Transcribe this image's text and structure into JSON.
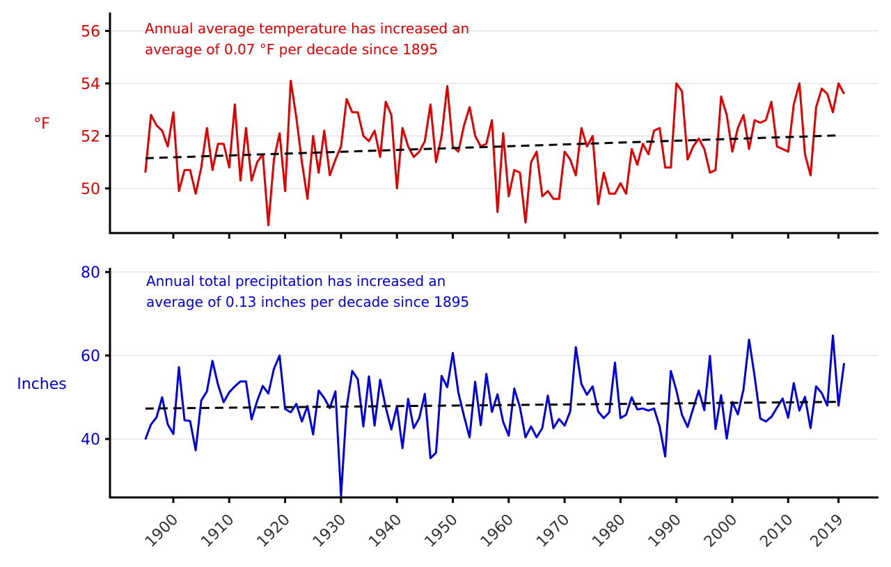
{
  "chart_data": [
    {
      "type": "line",
      "name": "temperature",
      "color": "#e00000",
      "ylabel": "°F",
      "annotation": [
        "Annual average temperature has increased an",
        "average of 0.07 °F per decade since 1895"
      ],
      "ylim": [
        48.3,
        56.7
      ],
      "yticks": [
        50,
        52,
        54,
        56
      ],
      "trend": {
        "start_year": 1895,
        "start_value": 51.15,
        "end_year": 2019,
        "end_value": 52.02
      },
      "series": [
        {
          "name": "Annual average temperature",
          "start_year": 1895,
          "values": [
            50.6,
            52.8,
            52.4,
            52.2,
            51.6,
            52.9,
            49.9,
            50.7,
            50.7,
            49.8,
            50.8,
            52.3,
            50.7,
            51.7,
            51.7,
            50.8,
            53.2,
            50.3,
            52.3,
            50.3,
            51.0,
            51.3,
            48.6,
            51.1,
            52.1,
            49.9,
            54.1,
            52.7,
            51.0,
            49.6,
            52.0,
            50.6,
            52.2,
            50.5,
            51.1,
            51.6,
            53.4,
            52.9,
            52.9,
            52.0,
            51.8,
            52.2,
            51.2,
            53.3,
            52.8,
            50.0,
            52.3,
            51.6,
            51.2,
            51.4,
            51.8,
            53.2,
            51.0,
            52.0,
            53.9,
            51.6,
            51.4,
            52.4,
            53.1,
            52.0,
            51.6,
            51.7,
            52.6,
            49.1,
            52.1,
            49.7,
            50.7,
            50.6,
            48.7,
            51.0,
            51.4,
            49.7,
            49.9,
            49.6,
            49.6,
            51.4,
            51.1,
            50.5,
            52.3,
            51.6,
            52.0,
            49.4,
            50.6,
            49.8,
            49.8,
            50.2,
            49.8,
            51.5,
            50.9,
            51.7,
            51.3,
            52.2,
            52.3,
            50.8,
            50.8,
            54.0,
            53.7,
            51.1,
            51.6,
            51.9,
            51.5,
            50.6,
            50.7,
            53.5,
            52.8,
            51.4,
            52.3,
            52.8,
            51.5,
            52.6,
            52.5,
            52.6,
            53.3,
            51.6,
            51.5,
            51.4,
            53.2,
            54.0,
            51.3,
            50.5,
            53.1,
            53.8,
            53.6,
            52.9,
            54.0,
            53.6
          ]
        }
      ]
    },
    {
      "type": "line",
      "name": "precipitation",
      "color": "#0000dd",
      "ylabel": "Inches",
      "annotation": [
        "Annual total precipitation has increased an",
        "average of 0.13 inches per decade since 1895"
      ],
      "ylim": [
        26,
        81
      ],
      "yticks": [
        40,
        60,
        80
      ],
      "trend": {
        "start_year": 1895,
        "start_value": 47.3,
        "end_year": 2019,
        "end_value": 48.9
      },
      "series": [
        {
          "name": "Annual total precipitation",
          "start_year": 1895,
          "values": [
            39.9,
            43.5,
            45.2,
            50.0,
            43.5,
            41.2,
            57.2,
            44.5,
            44.3,
            37.3,
            49.2,
            51.4,
            58.7,
            53.0,
            48.8,
            51.2,
            52.6,
            53.8,
            53.8,
            44.7,
            49.1,
            52.7,
            50.9,
            56.8,
            60.0,
            47.2,
            46.4,
            48.4,
            44.2,
            47.9,
            41.1,
            51.6,
            49.8,
            47.4,
            51.4,
            26.3,
            47.5,
            56.3,
            54.3,
            43.0,
            55.0,
            43.2,
            54.2,
            47.6,
            42.3,
            47.8,
            37.8,
            49.6,
            42.6,
            45.0,
            50.8,
            35.4,
            36.7,
            55.1,
            52.4,
            60.6,
            51.1,
            45.5,
            40.4,
            53.7,
            43.3,
            55.6,
            46.5,
            50.7,
            44.1,
            40.8,
            52.1,
            47.6,
            40.4,
            43.0,
            40.4,
            42.6,
            50.4,
            42.6,
            44.8,
            43.2,
            46.6,
            62.0,
            53.2,
            50.6,
            52.6,
            46.6,
            45.0,
            46.4,
            58.3,
            45.0,
            45.8,
            50.0,
            47.1,
            47.3,
            46.8,
            47.3,
            43.0,
            35.8,
            56.3,
            51.6,
            45.8,
            42.9,
            47.3,
            51.6,
            46.9,
            59.9,
            42.4,
            50.5,
            40.1,
            48.9,
            45.9,
            51.9,
            63.8,
            55.0,
            44.9,
            44.2,
            45.3,
            47.5,
            49.7,
            45.1,
            53.4,
            46.8,
            50.1,
            42.6,
            52.6,
            51.0,
            48.0,
            64.8,
            48.0,
            58.2
          ]
        }
      ]
    }
  ],
  "x_axis": {
    "tick_years": [
      1900,
      1910,
      1920,
      1930,
      1940,
      1950,
      1960,
      1970,
      1980,
      1990,
      2000,
      2010,
      2019
    ],
    "tick_labels": [
      "1900",
      "1910",
      "1920",
      "1930",
      "1940",
      "1950",
      "1960",
      "1970",
      "1980",
      "1990",
      "2000",
      "2010",
      "2019"
    ]
  }
}
